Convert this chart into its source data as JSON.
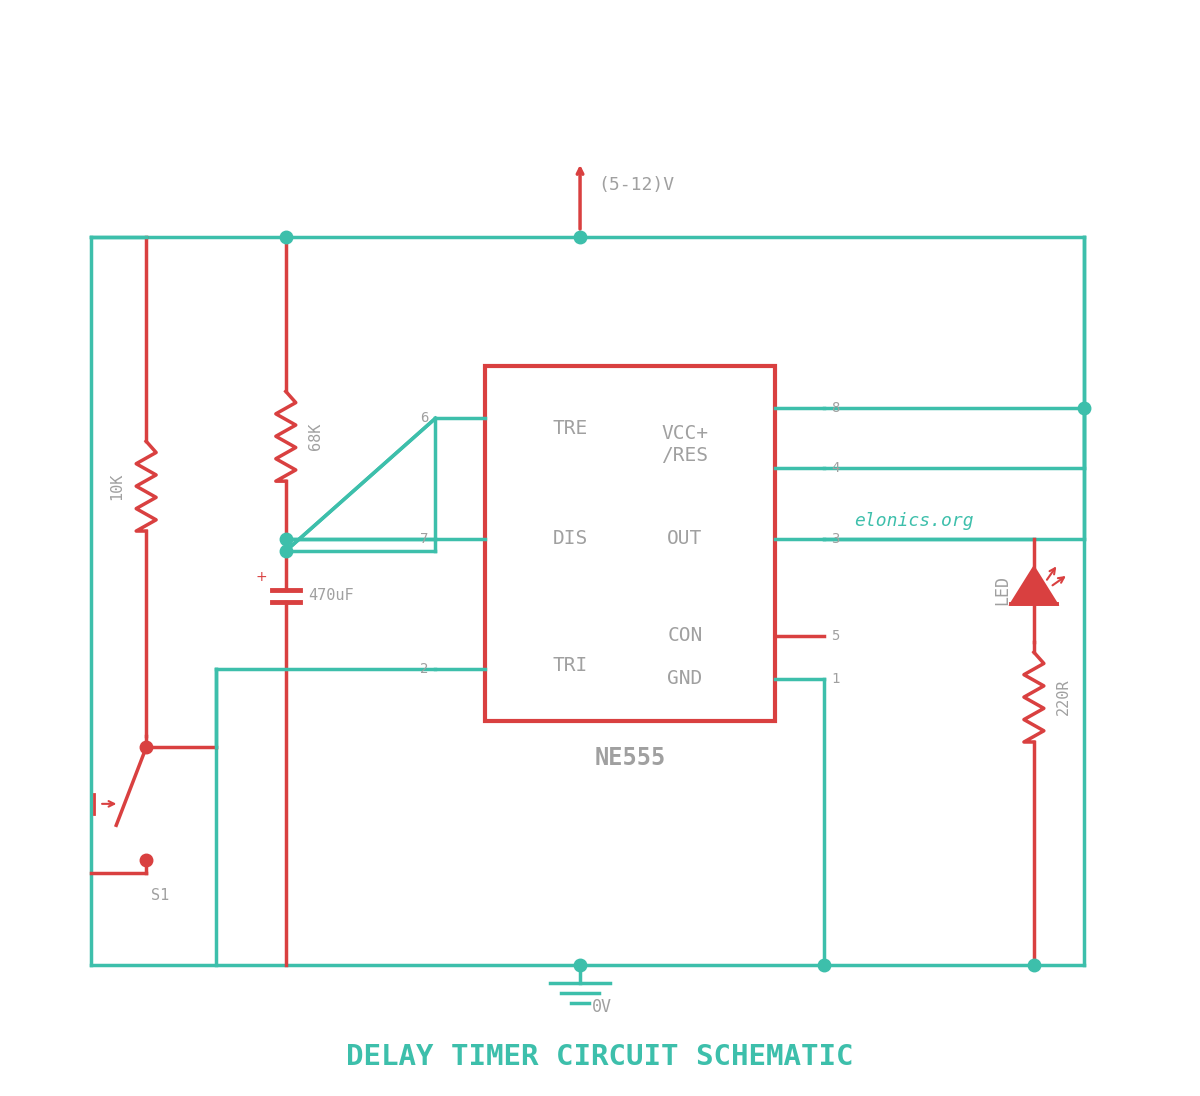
{
  "bg_color": "#ffffff",
  "teal": "#3dbfab",
  "red": "#d94040",
  "gray": "#a0a0a0",
  "title": "DELAY TIMER CIRCUIT SCHEMATIC",
  "title_color": "#3dbfab",
  "watermark": "elonics.org",
  "chip_label": "NE555",
  "voltage_label": "(5-12)V",
  "gnd_label": "0V",
  "resistor_labels": [
    "10K",
    "68K",
    "220R"
  ],
  "cap_label": "470uF",
  "led_label": "LED",
  "switch_label": "S1",
  "lw": 2.5
}
